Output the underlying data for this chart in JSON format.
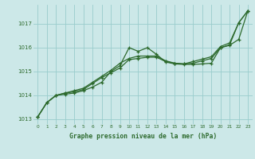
{
  "title": "Graphe pression niveau de la mer (hPa)",
  "bg_color": "#cce8e8",
  "grid_color": "#99cccc",
  "line_color": "#2d6a2d",
  "xlim": [
    -0.5,
    23.5
  ],
  "ylim": [
    1012.8,
    1017.8
  ],
  "yticks": [
    1013,
    1014,
    1015,
    1016,
    1017
  ],
  "xticks": [
    0,
    1,
    2,
    3,
    4,
    5,
    6,
    7,
    8,
    9,
    10,
    11,
    12,
    13,
    14,
    15,
    16,
    17,
    18,
    19,
    20,
    21,
    22,
    23
  ],
  "series1": [
    1013.1,
    1013.7,
    1014.0,
    1014.05,
    1014.1,
    1014.2,
    1014.35,
    1014.55,
    1015.0,
    1015.25,
    1016.0,
    1015.85,
    1016.0,
    1015.72,
    1015.4,
    1015.32,
    1015.3,
    1015.3,
    1015.32,
    1015.35,
    1016.0,
    1016.1,
    1016.35,
    1017.55
  ],
  "series2": [
    1013.1,
    1013.7,
    1014.0,
    1014.1,
    1014.15,
    1014.25,
    1014.5,
    1014.75,
    1014.95,
    1015.15,
    1015.5,
    1015.55,
    1015.6,
    1015.6,
    1015.42,
    1015.35,
    1015.32,
    1015.35,
    1015.45,
    1015.55,
    1016.0,
    1016.12,
    1017.05,
    1017.55
  ],
  "series3": [
    1013.1,
    1013.7,
    1014.0,
    1014.1,
    1014.2,
    1014.3,
    1014.55,
    1014.8,
    1015.05,
    1015.35,
    1015.55,
    1015.65,
    1015.65,
    1015.65,
    1015.45,
    1015.35,
    1015.32,
    1015.42,
    1015.52,
    1015.62,
    1016.05,
    1016.2,
    1017.05,
    1017.55
  ]
}
